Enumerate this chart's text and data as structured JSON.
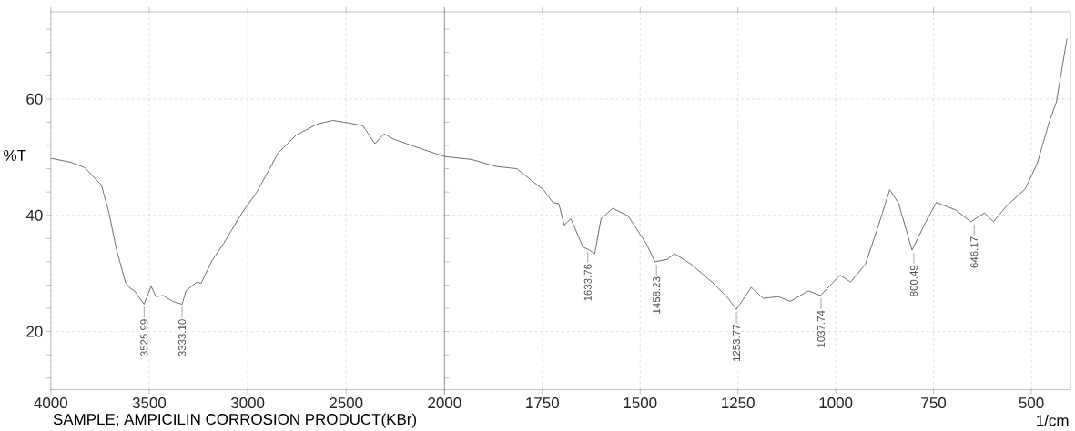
{
  "chart_data": [
    {
      "type": "line",
      "ylabel": "%T",
      "color": "#333333",
      "grid": true,
      "xlim": [
        4000,
        2000
      ],
      "ylim": [
        10,
        75
      ],
      "xticks": [
        4000,
        3500,
        3000,
        2500,
        {
          "value": 2000,
          "label": null
        }
      ],
      "yticks": [
        {
          "value": 12,
          "label": null
        },
        {
          "value": 16,
          "label": null
        },
        20,
        {
          "value": 24,
          "label": null
        },
        {
          "value": 28,
          "label": null
        },
        {
          "value": 32,
          "label": null
        },
        {
          "value": 36,
          "label": null
        },
        40,
        {
          "value": 44,
          "label": null
        },
        {
          "value": 48,
          "label": null
        },
        {
          "value": 52,
          "label": null
        },
        {
          "value": 56,
          "label": null
        },
        60,
        {
          "value": 64,
          "label": null
        },
        {
          "value": 68,
          "label": null
        },
        {
          "value": 72,
          "label": null
        }
      ],
      "x": [
        4000,
        3897,
        3828,
        3743,
        3705,
        3667,
        3621,
        3598,
        3575,
        3526,
        3490,
        3466,
        3429,
        3382,
        3333,
        3313,
        3259,
        3236,
        3183,
        3121,
        3029,
        2953,
        2845,
        2753,
        2645,
        2568,
        2491,
        2415,
        2353,
        2307,
        2260,
        2107,
        2000
      ],
      "values": [
        49.8,
        49.1,
        48.2,
        45.2,
        40.5,
        34.2,
        28.5,
        27.5,
        27.0,
        24.7,
        27.8,
        26.0,
        26.2,
        25.2,
        24.7,
        27.0,
        28.5,
        28.3,
        32.1,
        35.2,
        40.4,
        44.0,
        50.7,
        53.8,
        55.7,
        56.3,
        55.9,
        55.4,
        52.3,
        54.0,
        53.1,
        51.3,
        50.1
      ],
      "annotations": [
        {
          "text": "3525.99",
          "x": 3525.99,
          "y": 24.7
        },
        {
          "text": "3333.10",
          "x": 3333.1,
          "y": 24.7
        },
        "SAMPLE; AMPICILIN CORROSION PRODUCT(KBr)"
      ]
    },
    {
      "type": "line",
      "xlabel": "1/cm",
      "color": "#333333",
      "grid": true,
      "tick_labels": "x",
      "xlim": [
        2000,
        400
      ],
      "ylim": [
        10,
        75
      ],
      "xticks": [
        2000,
        1750,
        1500,
        1250,
        1000,
        750,
        500
      ],
      "yticks": [
        20,
        40,
        60
      ],
      "x": [
        2000,
        1931,
        1869,
        1815,
        1746,
        1723,
        1708,
        1694,
        1677,
        1646,
        1634,
        1616,
        1600,
        1570,
        1531,
        1485,
        1462,
        1431,
        1412,
        1370,
        1316,
        1277,
        1254,
        1216,
        1185,
        1147,
        1116,
        1070,
        1039,
        989,
        962,
        924,
        893,
        862,
        839,
        805,
        774,
        743,
        693,
        655,
        620,
        597,
        562,
        516,
        485,
        455,
        436,
        409
      ],
      "values": [
        50.1,
        49.6,
        48.4,
        48.0,
        44.3,
        42.2,
        42.0,
        38.3,
        39.4,
        34.5,
        34.2,
        33.4,
        39.4,
        41.2,
        39.9,
        35.2,
        32.0,
        32.4,
        33.4,
        31.6,
        28.5,
        25.9,
        23.8,
        27.6,
        25.7,
        26.0,
        25.2,
        27.0,
        26.2,
        29.7,
        28.5,
        31.6,
        37.8,
        44.4,
        42.0,
        34.0,
        38.3,
        42.2,
        40.9,
        38.9,
        40.4,
        38.9,
        41.7,
        44.5,
        48.9,
        55.9,
        59.5,
        70.4
      ],
      "annotations": [
        {
          "text": "1633.76",
          "x": 1633.76,
          "y": 34.2
        },
        {
          "text": "1458.23",
          "x": 1458.23,
          "y": 32.0
        },
        {
          "text": "1253.77",
          "x": 1253.77,
          "y": 23.8
        },
        {
          "text": "1037.74",
          "x": 1037.74,
          "y": 26.2
        },
        {
          "text": "800.49",
          "x": 800.49,
          "y": 34.0
        },
        {
          "text": "646.17",
          "x": 646.17,
          "y": 38.9
        }
      ]
    }
  ]
}
